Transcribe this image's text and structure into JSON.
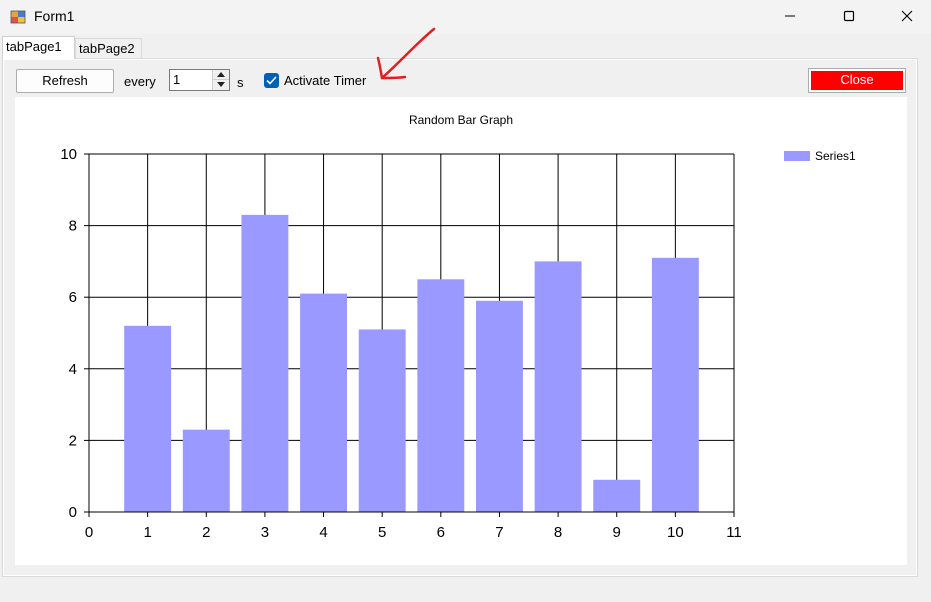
{
  "window": {
    "title": "Form1"
  },
  "tabs": [
    {
      "label": "tabPage1",
      "selected": true
    },
    {
      "label": "tabPage2",
      "selected": false
    }
  ],
  "toolbar": {
    "refresh_label": "Refresh",
    "every_label": "every",
    "interval_value": "1",
    "unit_label": "s",
    "timer_label": "Activate Timer",
    "timer_checked": true,
    "close_label": "Close",
    "close_color": "#ff0000"
  },
  "colors": {
    "bar": "#9999ff",
    "checkbox": "#005fb8",
    "annotation": "#e02020"
  },
  "chart_data": {
    "type": "bar",
    "title": "Random Bar Graph",
    "xlabel": "",
    "ylabel": "",
    "x": [
      1,
      2,
      3,
      4,
      5,
      6,
      7,
      8,
      9,
      10
    ],
    "series": [
      {
        "name": "Series1",
        "values": [
          5.2,
          2.3,
          8.3,
          6.1,
          5.1,
          6.5,
          5.9,
          7.0,
          0.9,
          7.1
        ]
      }
    ],
    "xlim": [
      0,
      11
    ],
    "ylim": [
      0,
      10
    ],
    "x_ticks": [
      0,
      1,
      2,
      3,
      4,
      5,
      6,
      7,
      8,
      9,
      10,
      11
    ],
    "y_ticks": [
      0,
      2,
      4,
      6,
      8,
      10
    ],
    "grid": true,
    "legend_position": "top-right"
  }
}
